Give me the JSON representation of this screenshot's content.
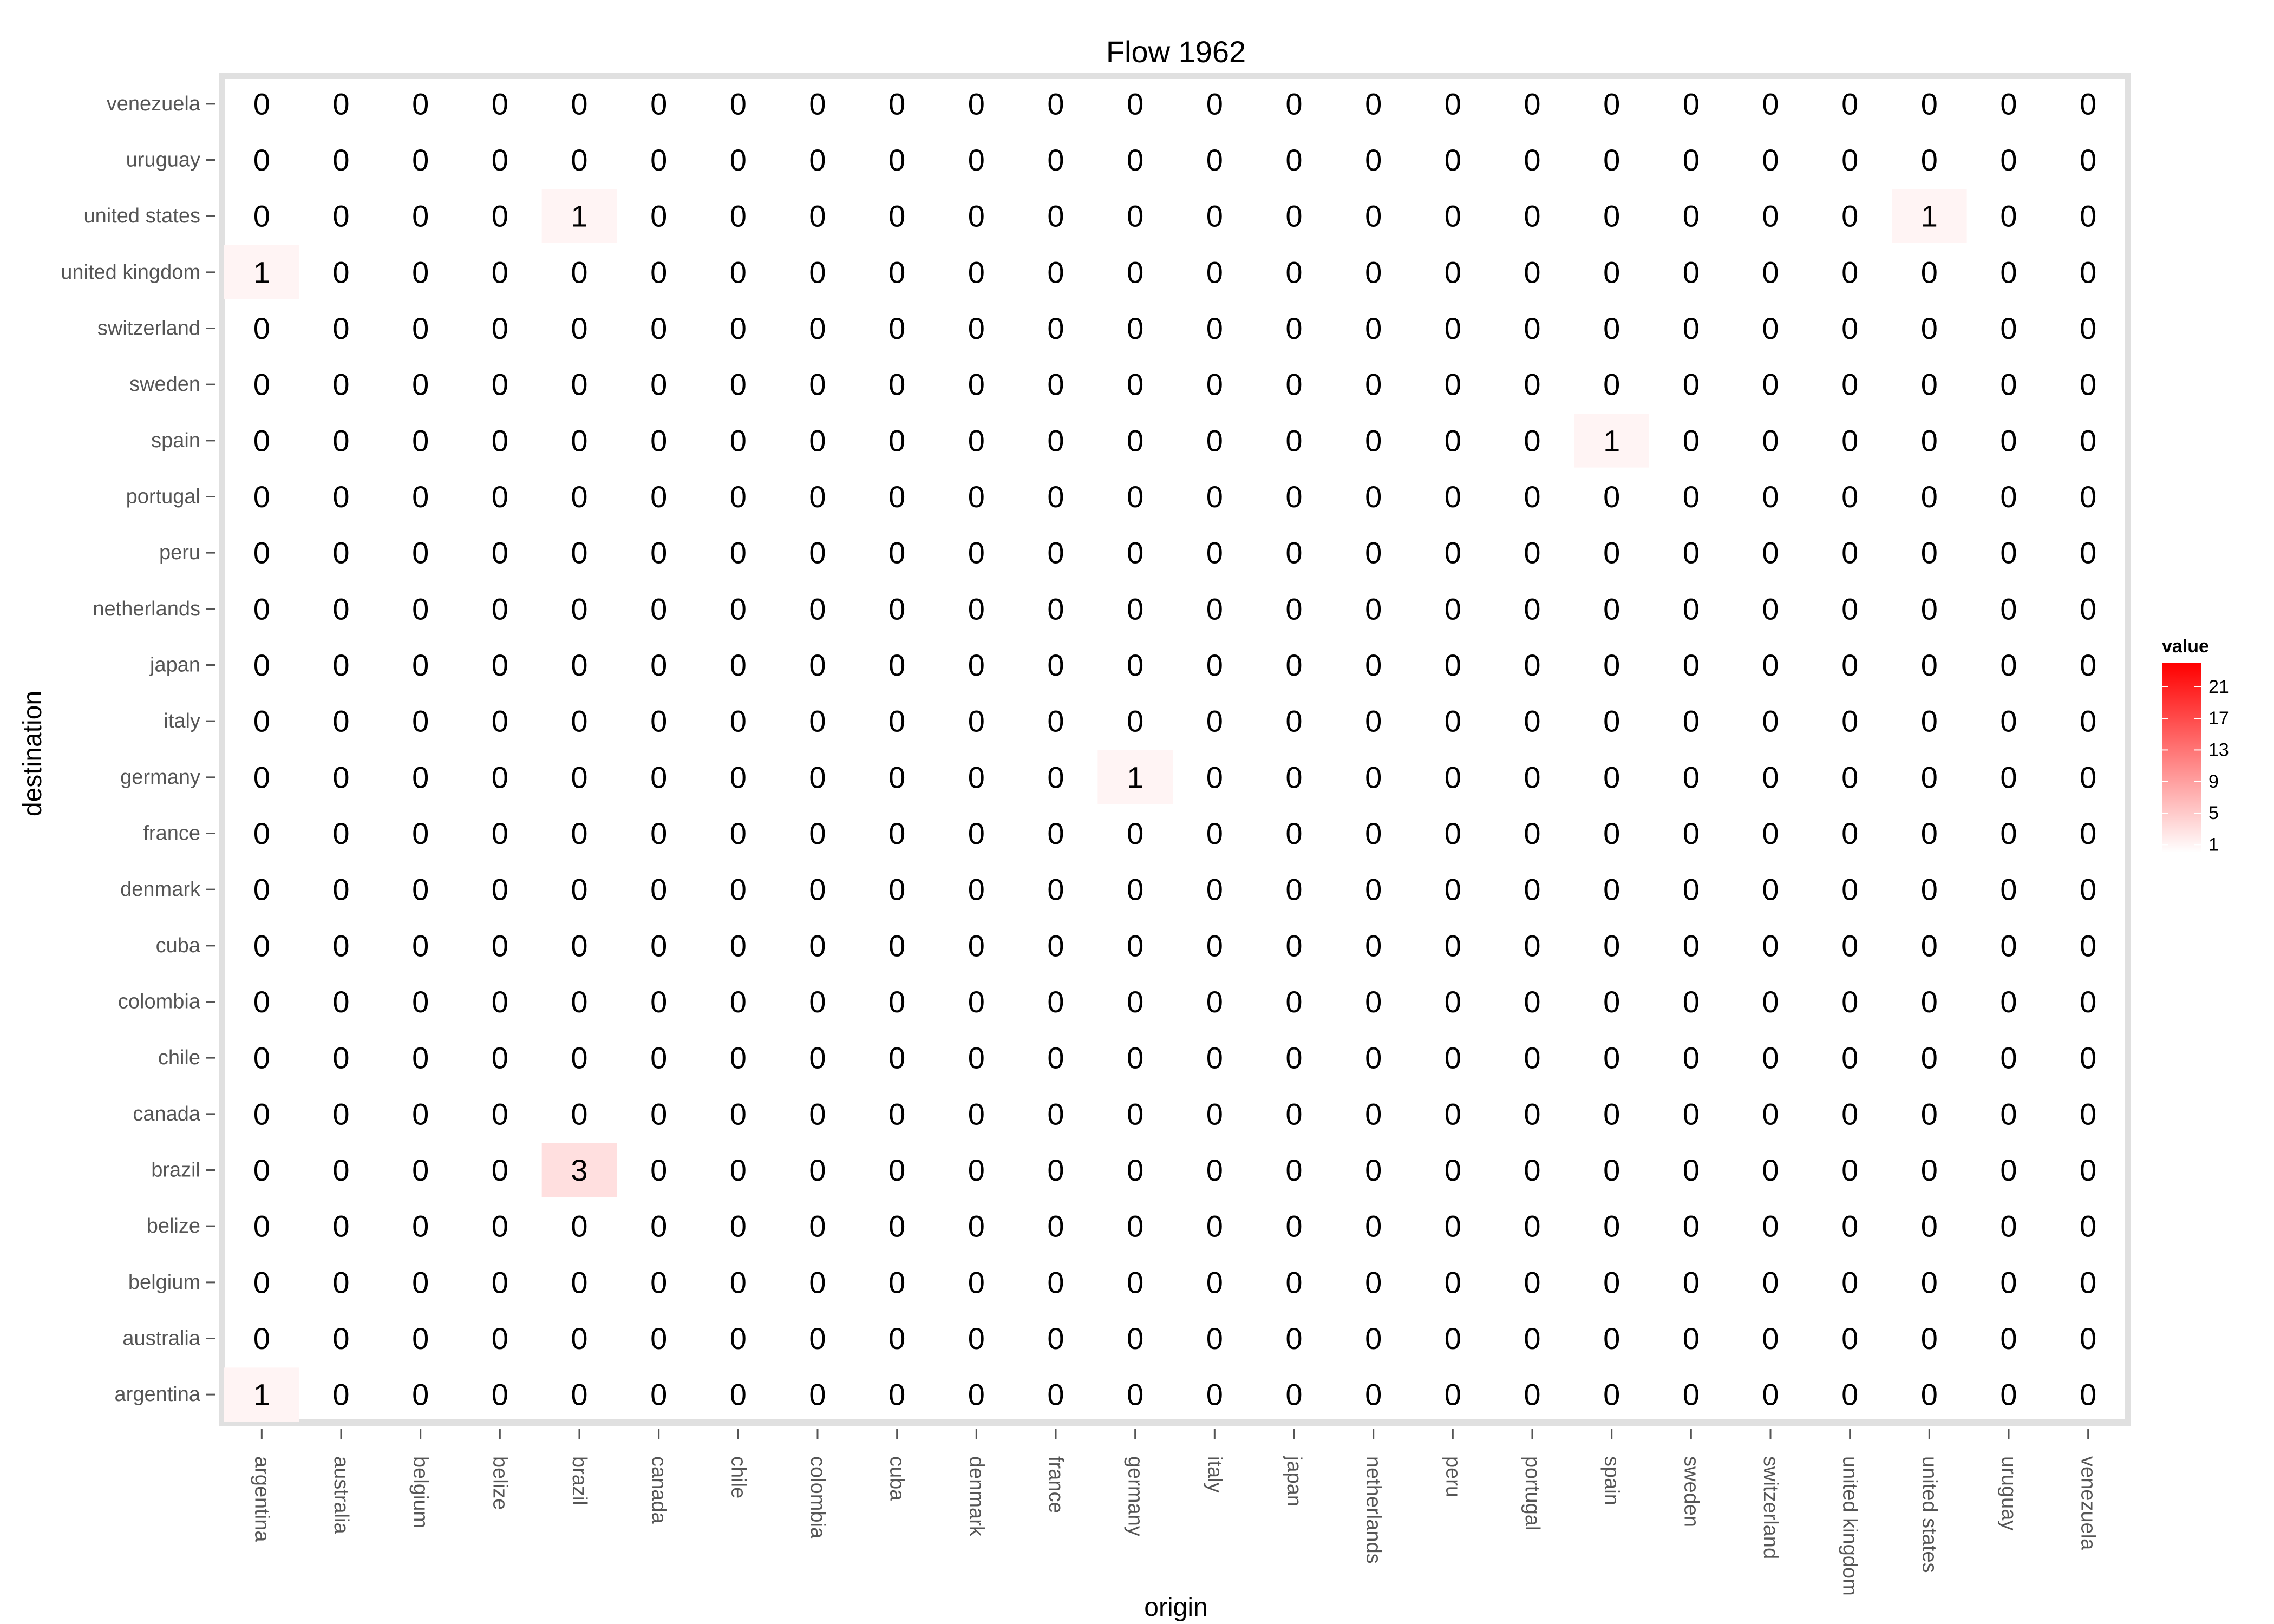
{
  "chart_data": {
    "type": "heatmap",
    "title": "Flow 1962",
    "xlabel": "origin",
    "ylabel": "destination",
    "x_categories": [
      "argentina",
      "australia",
      "belgium",
      "belize",
      "brazil",
      "canada",
      "chile",
      "colombia",
      "cuba",
      "denmark",
      "france",
      "germany",
      "italy",
      "japan",
      "netherlands",
      "peru",
      "portugal",
      "spain",
      "sweden",
      "switzerland",
      "united kingdom",
      "united states",
      "uruguay",
      "venezuela"
    ],
    "y_categories": [
      "argentina",
      "australia",
      "belgium",
      "belize",
      "brazil",
      "canada",
      "chile",
      "colombia",
      "cuba",
      "denmark",
      "france",
      "germany",
      "italy",
      "japan",
      "netherlands",
      "peru",
      "portugal",
      "spain",
      "sweden",
      "switzerland",
      "united kingdom",
      "united states",
      "uruguay",
      "venezuela"
    ],
    "nonzero_cells": [
      {
        "origin": "argentina",
        "destination": "argentina",
        "value": 1
      },
      {
        "origin": "brazil",
        "destination": "brazil",
        "value": 3
      },
      {
        "origin": "germany",
        "destination": "germany",
        "value": 1
      },
      {
        "origin": "spain",
        "destination": "spain",
        "value": 1
      },
      {
        "origin": "argentina",
        "destination": "united kingdom",
        "value": 1
      },
      {
        "origin": "brazil",
        "destination": "united states",
        "value": 1
      },
      {
        "origin": "united states",
        "destination": "united states",
        "value": 1
      }
    ],
    "default_value": 0,
    "legend": {
      "title": "value",
      "ticks": [
        21,
        17,
        13,
        9,
        5,
        1
      ],
      "range": [
        0,
        24
      ],
      "low_color": "#ffffff",
      "high_color": "#ff0000"
    },
    "grid": false,
    "legend_position": "right"
  }
}
